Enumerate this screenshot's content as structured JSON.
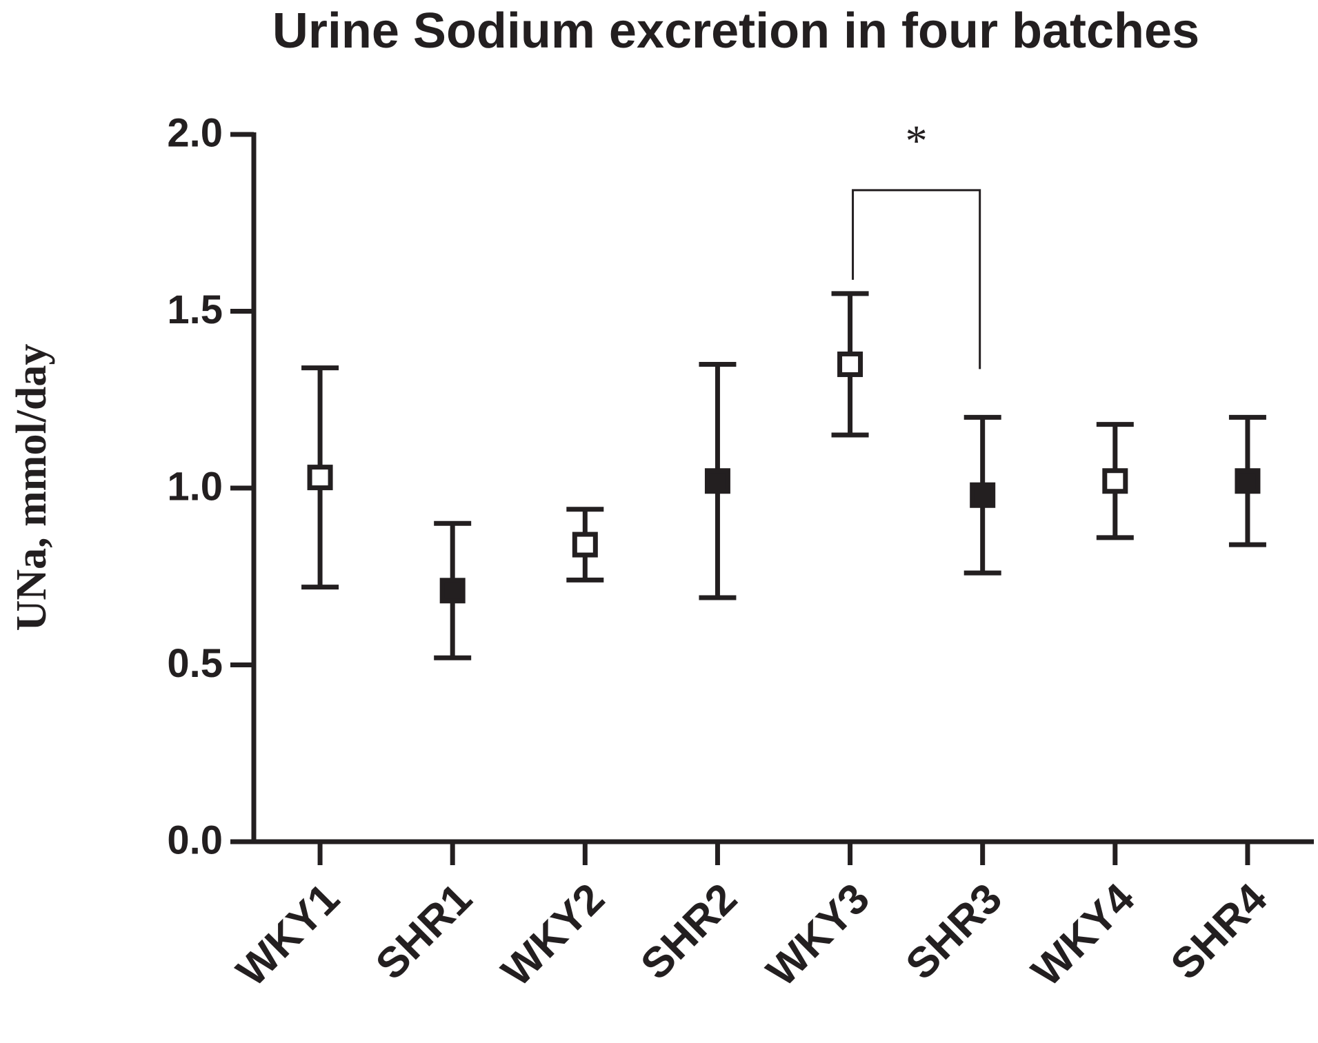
{
  "chart_data": {
    "type": "errorbar",
    "title": "Urine Sodium excretion in four batches",
    "y_label": "UNa, mmol/day",
    "categories": [
      "WKY1",
      "SHR1",
      "WKY2",
      "SHR2",
      "WKY3",
      "SHR3",
      "WKY4",
      "SHR4"
    ],
    "values": [
      1.03,
      0.71,
      0.84,
      1.02,
      1.35,
      0.98,
      1.02,
      1.02
    ],
    "errors": [
      0.31,
      0.19,
      0.1,
      0.33,
      0.2,
      0.22,
      0.16,
      0.18
    ],
    "marker_fills": [
      "#ffffff",
      "#231f20",
      "#ffffff",
      "#231f20",
      "#ffffff",
      "#231f20",
      "#ffffff",
      "#231f20"
    ],
    "color": "#231f20",
    "ylim": [
      0,
      2.0
    ],
    "yticks": [
      {
        "value": 0,
        "label": "0.0"
      },
      {
        "value": 0.5,
        "label": "0.5"
      },
      {
        "value": 1.0,
        "label": "1.0"
      },
      {
        "value": 1.5,
        "label": "1.5"
      },
      {
        "value": 2.0,
        "label": "2.0"
      }
    ],
    "significance": {
      "label": "*",
      "between": [
        "WKY3",
        "SHR3"
      ]
    }
  }
}
